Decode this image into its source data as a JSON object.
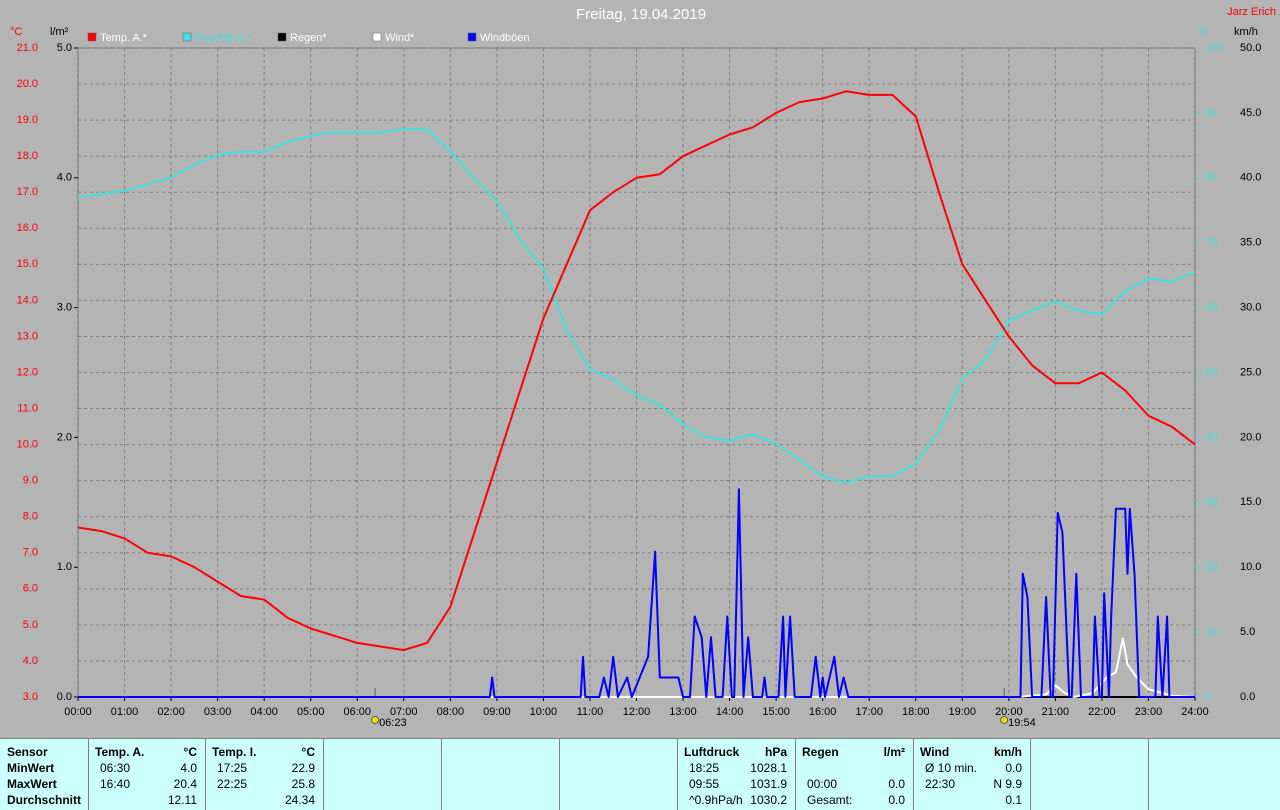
{
  "chart_data": {
    "type": "line",
    "title": "Freitag, 19.04.2019",
    "author": "Jarz Erich",
    "grid": true,
    "xlim": [
      0,
      24
    ],
    "xticks": [
      {
        "value": 0,
        "label": "00:00"
      },
      {
        "value": 1,
        "label": "01:00"
      },
      {
        "value": 2,
        "label": "02:00"
      },
      {
        "value": 3,
        "label": "03:00"
      },
      {
        "value": 4,
        "label": "04:00"
      },
      {
        "value": 5,
        "label": "05:00"
      },
      {
        "value": 6,
        "label": "06:00"
      },
      {
        "value": 7,
        "label": "07:00"
      },
      {
        "value": 8,
        "label": "08:00"
      },
      {
        "value": 9,
        "label": "09:00"
      },
      {
        "value": 10,
        "label": "10:00"
      },
      {
        "value": 11,
        "label": "11:00"
      },
      {
        "value": 12,
        "label": "12:00"
      },
      {
        "value": 13,
        "label": "13:00"
      },
      {
        "value": 14,
        "label": "14:00"
      },
      {
        "value": 15,
        "label": "15:00"
      },
      {
        "value": 16,
        "label": "16:00"
      },
      {
        "value": 17,
        "label": "17:00"
      },
      {
        "value": 18,
        "label": "18:00"
      },
      {
        "value": 19,
        "label": "19:00"
      },
      {
        "value": 20,
        "label": "20:00"
      },
      {
        "value": 21,
        "label": "21:00"
      },
      {
        "value": 22,
        "label": "22:00"
      },
      {
        "value": 23,
        "label": "23:00"
      },
      {
        "value": 24,
        "label": "24:00"
      }
    ],
    "y_unit": "°C",
    "ylim": [
      3,
      21
    ],
    "yticks": [
      {
        "value": 3,
        "label": "3.0"
      },
      {
        "value": 4,
        "label": "4.0"
      },
      {
        "value": 5,
        "label": "5.0"
      },
      {
        "value": 6,
        "label": "6.0"
      },
      {
        "value": 7,
        "label": "7.0"
      },
      {
        "value": 8,
        "label": "8.0"
      },
      {
        "value": 9,
        "label": "9.0"
      },
      {
        "value": 10,
        "label": "10.0"
      },
      {
        "value": 11,
        "label": "11.0"
      },
      {
        "value": 12,
        "label": "12.0"
      },
      {
        "value": 13,
        "label": "13.0"
      },
      {
        "value": 14,
        "label": "14.0"
      },
      {
        "value": 15,
        "label": "15.0"
      },
      {
        "value": 16,
        "label": "16.0"
      },
      {
        "value": 17,
        "label": "17.0"
      },
      {
        "value": 18,
        "label": "18.0"
      },
      {
        "value": 19,
        "label": "19.0"
      },
      {
        "value": 20,
        "label": "20.0"
      },
      {
        "value": 21,
        "label": "21.0"
      }
    ],
    "y2_unit": "l/m²",
    "y2lim": [
      0,
      5
    ],
    "y2ticks": [
      {
        "value": 0,
        "label": "0.0"
      },
      {
        "value": 1,
        "label": "1.0"
      },
      {
        "value": 2,
        "label": "2.0"
      },
      {
        "value": 3,
        "label": "3.0"
      },
      {
        "value": 4,
        "label": "4.0"
      },
      {
        "value": 5,
        "label": "5.0"
      }
    ],
    "y3_unit": "%",
    "y3lim": [
      0,
      100
    ],
    "y3ticks": [
      0,
      10,
      20,
      30,
      40,
      50,
      60,
      70,
      80,
      90,
      100
    ],
    "y4_unit": "km/h",
    "y4lim": [
      0,
      50
    ],
    "y4ticks": [
      {
        "value": 0,
        "label": "0.0"
      },
      {
        "value": 5,
        "label": "5.0"
      },
      {
        "value": 10,
        "label": "10.0"
      },
      {
        "value": 15,
        "label": "15.0"
      },
      {
        "value": 20,
        "label": "20.0"
      },
      {
        "value": 25,
        "label": "25.0"
      },
      {
        "value": 30,
        "label": "30.0"
      },
      {
        "value": 35,
        "label": "35.0"
      },
      {
        "value": 40,
        "label": "40.0"
      },
      {
        "value": 45,
        "label": "45.0"
      },
      {
        "value": 50,
        "label": "50.0"
      }
    ],
    "sun_events": [
      {
        "value": 6.383,
        "label": "06:23"
      },
      {
        "value": 19.9,
        "label": "19:54"
      }
    ],
    "series": [
      {
        "name": "Temp. A.*",
        "color": "#ff0000",
        "axis": "y",
        "x": [
          0,
          0.5,
          1,
          1.5,
          2,
          2.5,
          3,
          3.5,
          4,
          4.5,
          5,
          5.5,
          6,
          6.5,
          7,
          7.5,
          8,
          8.5,
          9,
          9.5,
          10,
          10.5,
          11,
          11.5,
          12,
          12.5,
          13,
          13.5,
          14,
          14.5,
          15,
          15.5,
          16,
          16.5,
          17,
          17.5,
          18,
          18.5,
          19,
          19.5,
          20,
          20.5,
          21,
          21.5,
          22,
          22.5,
          23,
          23.5,
          24
        ],
        "values": [
          7.7,
          7.6,
          7.4,
          7.0,
          6.9,
          6.6,
          6.2,
          5.8,
          5.7,
          5.2,
          4.9,
          4.7,
          4.5,
          4.4,
          4.3,
          4.5,
          5.5,
          7.5,
          9.5,
          11.5,
          13.5,
          15.0,
          16.5,
          17.0,
          17.4,
          17.5,
          18.0,
          18.3,
          18.6,
          18.8,
          19.2,
          19.5,
          19.6,
          19.8,
          19.7,
          19.7,
          19.1,
          17.0,
          15.0,
          14.0,
          13.0,
          12.2,
          11.7,
          11.7,
          12.0,
          11.5,
          10.8,
          10.5,
          10.0
        ]
      },
      {
        "name": "Feuchte A.*",
        "color": "#40e0e0",
        "axis": "y3",
        "x": [
          0,
          0.5,
          1,
          1.5,
          2,
          2.5,
          3,
          3.5,
          4,
          4.5,
          5,
          5.5,
          6,
          6.5,
          7,
          7.5,
          8,
          8.5,
          9,
          9.5,
          10,
          10.5,
          11,
          11.5,
          12,
          12.5,
          13,
          13.5,
          14,
          14.5,
          15,
          15.5,
          16,
          16.5,
          17,
          17.5,
          18,
          18.5,
          19,
          19.5,
          20,
          20.5,
          21,
          21.5,
          22,
          22.5,
          23,
          23.5,
          24
        ],
        "values": [
          77,
          77.5,
          78,
          79,
          80,
          82,
          83.5,
          84,
          84,
          85.5,
          86.5,
          87,
          87,
          87,
          87.5,
          87.5,
          84,
          80,
          76.5,
          70.5,
          66,
          56.5,
          50.5,
          49,
          46.5,
          45,
          42,
          40,
          39.5,
          40.5,
          39,
          36.5,
          34,
          33,
          34,
          34,
          36,
          41,
          49,
          52,
          58,
          59.5,
          61,
          59.5,
          59,
          62.5,
          64.5,
          64,
          65.5
        ]
      },
      {
        "name": "Regen*",
        "color": "#000000",
        "axis": "y2",
        "x": [
          0,
          24
        ],
        "values": [
          0,
          0
        ]
      },
      {
        "name": "Wind*",
        "color": "#ffffff",
        "axis": "y4",
        "x": [
          0,
          20.2,
          20.8,
          21.0,
          21.2,
          21.4,
          21.8,
          22.1,
          22.3,
          22.45,
          22.55,
          22.75,
          23.0,
          23.5,
          24
        ],
        "values": [
          0,
          0,
          0.2,
          0.9,
          0.3,
          0,
          0.3,
          1.5,
          1.9,
          4.5,
          2.5,
          1.5,
          0.6,
          0.1,
          0
        ]
      },
      {
        "name": "Windböen",
        "color": "#0000ff",
        "axis": "y4",
        "x": [
          0,
          8.85,
          8.9,
          8.95,
          10.8,
          10.85,
          10.9,
          11.2,
          11.3,
          11.4,
          11.5,
          11.6,
          11.8,
          11.9,
          12.25,
          12.4,
          12.5,
          12.9,
          13.0,
          13.15,
          13.25,
          13.4,
          13.5,
          13.6,
          13.7,
          13.85,
          13.95,
          14.05,
          14.1,
          14.2,
          14.3,
          14.4,
          14.5,
          14.7,
          14.75,
          14.8,
          15.05,
          15.15,
          15.2,
          15.3,
          15.4,
          15.75,
          15.85,
          15.95,
          16.0,
          16.05,
          16.25,
          16.35,
          16.45,
          16.55,
          20.25,
          20.3,
          20.4,
          20.5,
          20.7,
          20.8,
          20.9,
          20.95,
          21.05,
          21.15,
          21.3,
          21.35,
          21.45,
          21.55,
          21.8,
          21.85,
          21.95,
          22.0,
          22.05,
          22.15,
          22.2,
          22.3,
          22.5,
          22.55,
          22.6,
          22.7,
          22.8,
          23.15,
          23.2,
          23.3,
          23.4,
          23.45,
          24
        ],
        "values": [
          0,
          0,
          1.5,
          0,
          0,
          3.1,
          0,
          0,
          1.5,
          0,
          3.1,
          0,
          1.5,
          0,
          3.1,
          11.2,
          1.5,
          1.5,
          0,
          0,
          6.2,
          4.6,
          0,
          4.6,
          0,
          0,
          6.2,
          0,
          0,
          16.0,
          0,
          4.6,
          0,
          0,
          1.5,
          0,
          0,
          6.2,
          0,
          6.2,
          0,
          0,
          3.1,
          0,
          1.5,
          0,
          3.1,
          0,
          1.5,
          0,
          0,
          9.5,
          7.7,
          0,
          0,
          7.7,
          0,
          0,
          14.2,
          12.7,
          0,
          0,
          9.5,
          0,
          0,
          6.2,
          0,
          0,
          8.0,
          0,
          6.2,
          14.5,
          14.5,
          9.5,
          14.5,
          9.5,
          0,
          0,
          6.2,
          0,
          6.2,
          0,
          0
        ]
      }
    ]
  },
  "table": {
    "panels": [
      {
        "rows": [
          [
            "Sensor"
          ],
          [
            "MinWert"
          ],
          [
            "MaxWert"
          ],
          [
            "Durchschnitt"
          ]
        ]
      },
      {
        "rows": [
          [
            "Temp. A.",
            "°C"
          ],
          [
            "06:30",
            "4.0"
          ],
          [
            "16:40",
            "20.4"
          ],
          [
            null,
            "12.11"
          ]
        ]
      },
      {
        "rows": [
          [
            "Temp. I.",
            "°C"
          ],
          [
            "17:25",
            "22.9"
          ],
          [
            "22:25",
            "25.8"
          ],
          [
            null,
            "24.34"
          ]
        ]
      },
      {
        "rows": [
          [
            "Luftdruck",
            "hPa"
          ],
          [
            "18:25",
            "1028.1"
          ],
          [
            "09:55",
            "1031.9"
          ],
          [
            "^0.9hPa/h",
            "1030.2"
          ]
        ]
      },
      {
        "rows": [
          [
            "Regen",
            "l/m²"
          ],
          [
            null,
            null
          ],
          [
            "00:00",
            "0.0"
          ],
          [
            "Gesamt:",
            "0.0"
          ]
        ]
      },
      {
        "rows": [
          [
            "Wind",
            "km/h"
          ],
          [
            "Ø 10 min.",
            "0.0"
          ],
          [
            "22:30",
            "N 9.9"
          ],
          [
            null,
            "0.1"
          ]
        ]
      }
    ]
  }
}
